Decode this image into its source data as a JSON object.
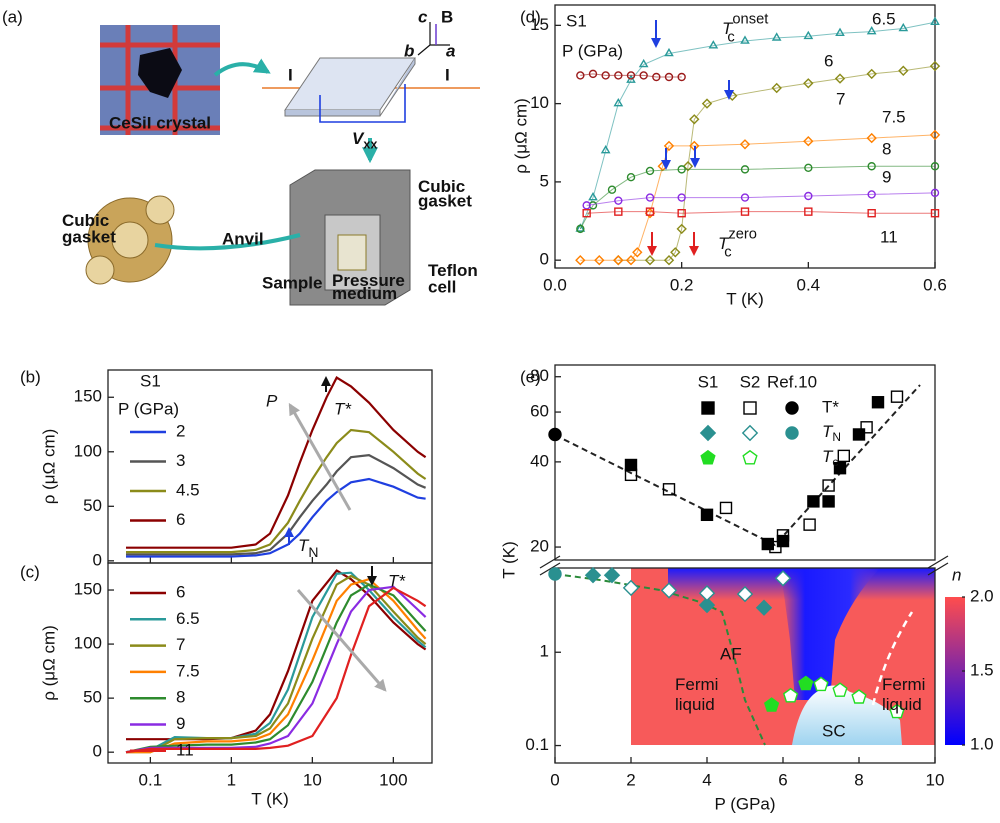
{
  "diagram": {
    "panel_label": "(a)",
    "crystal_label": "CeSiI crystal",
    "current_in": "I",
    "current_out": "I",
    "voltage": {
      "main": "V",
      "sub": "xx"
    },
    "axis_c": "c",
    "axis_b": "b",
    "axis_a": "a",
    "field": "B",
    "gasket_right": [
      "Cubic",
      "gasket"
    ],
    "gasket_left": [
      "Cubic",
      "gasket"
    ],
    "anvil": "Anvil",
    "sample": "Sample",
    "medium": [
      "Pressure",
      "medium"
    ],
    "teflon": [
      "Teflon",
      "cell"
    ]
  },
  "chart_data": [
    {
      "type": "line",
      "panel_label": "(b)",
      "sample": "S1",
      "legend_title": "P (GPa)",
      "ylabel": "ρ (μΩ cm)",
      "xlog": true,
      "xlim": [
        0.03,
        300
      ],
      "xticks": [
        0.1,
        1,
        10,
        100
      ],
      "ylim": [
        -2,
        175
      ],
      "yticks": [
        0,
        50,
        100,
        150
      ],
      "arrow_label": "P",
      "peak_label": "T*",
      "tn_label": {
        "main": "T",
        "sub": "N"
      },
      "x": [
        0.05,
        0.1,
        0.3,
        1,
        2,
        3,
        5,
        7,
        10,
        15,
        20,
        30,
        50,
        100,
        200,
        250
      ],
      "series": [
        {
          "name": "2",
          "color": "#1f3fe0",
          "values": [
            4,
            4,
            4,
            4,
            5,
            7,
            15,
            25,
            40,
            55,
            63,
            72,
            75,
            68,
            58,
            57
          ]
        },
        {
          "name": "3",
          "color": "#555555",
          "values": [
            6,
            6,
            6,
            6,
            7,
            10,
            25,
            40,
            55,
            70,
            82,
            95,
            97,
            85,
            70,
            67
          ]
        },
        {
          "name": "4.5",
          "color": "#8b8b1a",
          "values": [
            8,
            8,
            8,
            8,
            10,
            15,
            35,
            55,
            75,
            95,
            108,
            120,
            118,
            100,
            80,
            75
          ]
        },
        {
          "name": "6",
          "color": "#8b0000",
          "values": [
            12,
            12,
            12,
            12,
            15,
            25,
            60,
            90,
            120,
            150,
            168,
            160,
            145,
            120,
            100,
            95
          ]
        }
      ]
    },
    {
      "type": "line",
      "panel_label": "(c)",
      "ylabel": "ρ (μΩ cm)",
      "xlabel": "T (K)",
      "xlog": true,
      "xlim": [
        0.03,
        300
      ],
      "xticks": [
        0.1,
        1,
        10,
        100
      ],
      "ylim": [
        -10,
        175
      ],
      "yticks": [
        0,
        50,
        100,
        150
      ],
      "peak_label": "T*",
      "x": [
        0.05,
        0.1,
        0.2,
        0.5,
        1,
        2,
        3,
        5,
        10,
        20,
        30,
        50,
        100,
        200,
        250
      ],
      "series": [
        {
          "name": "6",
          "color": "#8b0000",
          "values": [
            12,
            12,
            12,
            12,
            13,
            20,
            35,
            75,
            140,
            168,
            160,
            145,
            120,
            100,
            95
          ]
        },
        {
          "name": "6.5",
          "color": "#2a9a9a",
          "values": [
            0,
            2,
            14,
            13,
            13,
            17,
            27,
            58,
            125,
            165,
            166,
            150,
            125,
            103,
            97
          ]
        },
        {
          "name": "7",
          "color": "#8b8b1a",
          "values": [
            0,
            0,
            12,
            13,
            13,
            15,
            22,
            45,
            105,
            155,
            163,
            155,
            130,
            106,
            100
          ]
        },
        {
          "name": "7.5",
          "color": "#ff8000",
          "values": [
            0,
            0,
            8,
            10,
            10,
            12,
            17,
            35,
            85,
            140,
            155,
            160,
            140,
            113,
            105
          ]
        },
        {
          "name": "8",
          "color": "#2e8b2e",
          "values": [
            0,
            5,
            6,
            7,
            7,
            9,
            12,
            25,
            65,
            120,
            145,
            155,
            145,
            120,
            112
          ]
        },
        {
          "name": "9",
          "color": "#8a2be2",
          "values": [
            0,
            4,
            4,
            4,
            4,
            5,
            8,
            15,
            45,
            100,
            130,
            150,
            153,
            132,
            125
          ]
        },
        {
          "name": "11",
          "color": "#e02020",
          "values": [
            0,
            3,
            3,
            3,
            3,
            3,
            4,
            6,
            15,
            50,
            90,
            135,
            152,
            140,
            135
          ]
        }
      ]
    },
    {
      "type": "scatter",
      "panel_label": "(d)",
      "sample": "S1",
      "legend_title": "P (GPa)",
      "ylabel": "ρ (μΩ cm)",
      "xlabel": "T (K)",
      "xlim": [
        0,
        0.6
      ],
      "xticks": [
        {
          "value": 0,
          "label": "0.0"
        },
        0.2,
        0.4,
        0.6
      ],
      "ylim": [
        -0.5,
        16.3
      ],
      "yticks": [
        0,
        5,
        10,
        15
      ],
      "onset_label": {
        "main": "T",
        "sub": "c",
        "sup": "onset"
      },
      "zero_label": {
        "main": "T",
        "sub": "c",
        "sup": "zero"
      },
      "series": [
        {
          "name": "6.5",
          "color": "#2a9a9a",
          "marker": "triangle",
          "x": [
            0.04,
            0.06,
            0.08,
            0.1,
            0.12,
            0.14,
            0.18,
            0.25,
            0.3,
            0.35,
            0.4,
            0.45,
            0.5,
            0.55,
            0.6
          ],
          "values": [
            2,
            4,
            7,
            10,
            11.5,
            12.5,
            13.2,
            13.7,
            14,
            14.2,
            14.3,
            14.5,
            14.6,
            14.8,
            15.2
          ]
        },
        {
          "name": "6",
          "color": "#9b1b1b",
          "marker": "circle",
          "x": [
            0.04,
            0.06,
            0.08,
            0.1,
            0.12,
            0.14,
            0.16,
            0.18,
            0.2
          ],
          "values": [
            11.8,
            11.9,
            11.8,
            11.8,
            11.8,
            11.8,
            11.7,
            11.7,
            11.7
          ]
        },
        {
          "name": "7",
          "color": "#8b8b1a",
          "marker": "diamond",
          "x": [
            0.1,
            0.15,
            0.18,
            0.19,
            0.2,
            0.21,
            0.22,
            0.24,
            0.28,
            0.35,
            0.4,
            0.45,
            0.5,
            0.55,
            0.6
          ],
          "values": [
            0,
            0,
            0,
            0.5,
            2,
            6,
            9,
            10,
            10.5,
            11,
            11.3,
            11.6,
            11.9,
            12.1,
            12.4
          ]
        },
        {
          "name": "7.5",
          "color": "#ff8000",
          "marker": "diamond",
          "x": [
            0.04,
            0.07,
            0.1,
            0.12,
            0.13,
            0.15,
            0.17,
            0.18,
            0.22,
            0.3,
            0.4,
            0.5,
            0.6
          ],
          "values": [
            0,
            0,
            0,
            0,
            0.5,
            3,
            6,
            7.3,
            7.3,
            7.4,
            7.6,
            7.8,
            8
          ]
        },
        {
          "name": "8",
          "color": "#2e8b2e",
          "marker": "circle",
          "x": [
            0.04,
            0.06,
            0.09,
            0.12,
            0.15,
            0.2,
            0.3,
            0.4,
            0.5,
            0.6
          ],
          "values": [
            2,
            3.5,
            4.5,
            5.3,
            5.7,
            5.8,
            5.8,
            5.9,
            6,
            6
          ]
        },
        {
          "name": "9",
          "color": "#8a2be2",
          "marker": "circle",
          "x": [
            0.05,
            0.1,
            0.15,
            0.2,
            0.3,
            0.4,
            0.5,
            0.6
          ],
          "values": [
            3.5,
            3.8,
            4,
            4,
            4,
            4.1,
            4.2,
            4.3
          ]
        },
        {
          "name": "11",
          "color": "#e02020",
          "marker": "square",
          "x": [
            0.05,
            0.1,
            0.15,
            0.2,
            0.3,
            0.4,
            0.5,
            0.6
          ],
          "values": [
            3,
            3.1,
            3.1,
            3,
            3.1,
            3.1,
            3,
            3
          ]
        }
      ]
    },
    {
      "type": "scatter",
      "panel_label": "(e)",
      "ylabel": "T (K)",
      "xlabel": "P (GPa)",
      "xlim": [
        0,
        10
      ],
      "xticks": [
        0,
        2,
        4,
        6,
        8,
        10
      ],
      "upper": {
        "ylog": true,
        "ylim": [
          18,
          88
        ],
        "yticks": [
          20,
          40,
          60,
          80
        ]
      },
      "lower": {
        "ylog": true,
        "ylim": [
          0.065,
          8
        ],
        "yticks": [
          0.1,
          1
        ]
      },
      "legend": {
        "columns": [
          "S1",
          "S2",
          "Ref.10"
        ],
        "rows": [
          "T*",
          {
            "main": "T",
            "sub": "N"
          },
          {
            "main": "T",
            "sub": "c"
          }
        ]
      },
      "regions": {
        "af": "AF",
        "fl_left": [
          "Fermi",
          "liquid"
        ],
        "fl_right": [
          "Fermi",
          "liquid"
        ],
        "sc": "SC"
      },
      "colorbar": {
        "label": "n",
        "lim": [
          1.0,
          2.0
        ],
        "ticks": [
          {
            "value": 1,
            "label": "1.0"
          },
          {
            "value": 1.5,
            "label": "1.5"
          },
          {
            "value": 2,
            "label": "2.0"
          }
        ],
        "colors": [
          "#0000ff",
          "#ff4d4d"
        ]
      },
      "series": [
        {
          "part": "upper",
          "cell": [
            0,
            0
          ],
          "marker": "square",
          "filled": true,
          "color": "#000000",
          "x": [
            2,
            4,
            5.6,
            6,
            6.8,
            7.2,
            7.5,
            8,
            8.5
          ],
          "values": [
            39,
            26,
            20.5,
            21,
            29,
            29,
            38,
            50,
            65
          ]
        },
        {
          "part": "upper",
          "cell": [
            1,
            0
          ],
          "marker": "square",
          "filled": false,
          "color": "#000000",
          "x": [
            2,
            3,
            4.5,
            5.8,
            6,
            6.7,
            7.2,
            7.6,
            8.2,
            9
          ],
          "values": [
            36,
            32,
            27.5,
            20,
            22,
            24,
            33,
            42,
            53,
            68
          ]
        },
        {
          "part": "upper",
          "cell": [
            2,
            0
          ],
          "marker": "circle",
          "filled": true,
          "color": "#000000",
          "x": [
            0
          ],
          "values": [
            50
          ]
        },
        {
          "part": "lower",
          "cell": [
            0,
            1
          ],
          "marker": "diamond",
          "filled": true,
          "color": "#2a9090",
          "x": [
            1,
            1.5,
            4,
            5.5
          ],
          "values": [
            6.7,
            6.7,
            3.2,
            3.0
          ]
        },
        {
          "part": "lower",
          "cell": [
            1,
            1
          ],
          "marker": "diamond",
          "filled": false,
          "color": "#2a9090",
          "x": [
            2,
            3,
            4,
            5,
            6
          ],
          "values": [
            4.9,
            4.6,
            4.3,
            4.2,
            6.2
          ]
        },
        {
          "part": "lower",
          "cell": [
            2,
            1
          ],
          "marker": "circle",
          "filled": true,
          "color": "#2a9090",
          "x": [
            0
          ],
          "values": [
            6.9
          ]
        },
        {
          "part": "lower",
          "cell": [
            0,
            2
          ],
          "marker": "pentagon",
          "filled": true,
          "color": "#22dd22",
          "x": [
            5.7,
            6.6
          ],
          "values": [
            0.27,
            0.46
          ]
        },
        {
          "part": "lower",
          "cell": [
            1,
            2
          ],
          "marker": "pentagon",
          "filled": false,
          "color": "#22dd22",
          "x": [
            6.2,
            7,
            7.5,
            8,
            9
          ],
          "values": [
            0.34,
            0.45,
            0.39,
            0.33,
            0.23
          ]
        }
      ]
    }
  ]
}
